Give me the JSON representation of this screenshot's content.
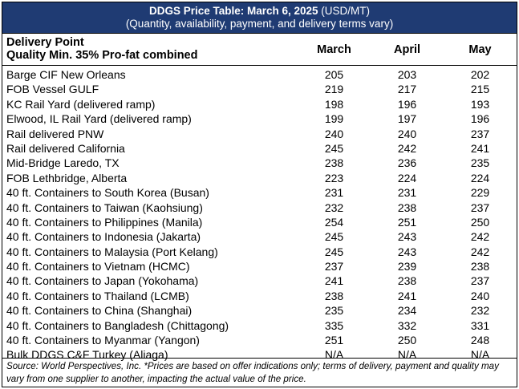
{
  "title": {
    "bold": "DDGS Price Table: March 6, 2025",
    "unit": " (USD/MT)",
    "subtitle": "(Quantity, availability, payment, and delivery terms vary)"
  },
  "header": {
    "label_line1": "Delivery Point",
    "label_line2": "Quality Min. 35% Pro-fat combined",
    "months": [
      "March",
      "April",
      "May"
    ]
  },
  "rows": [
    {
      "label": "Barge CIF New Orleans",
      "values": [
        "205",
        "203",
        "202"
      ]
    },
    {
      "label": "FOB Vessel GULF",
      "values": [
        "219",
        "217",
        "215"
      ]
    },
    {
      "label": "KC Rail Yard (delivered ramp)",
      "values": [
        "198",
        "196",
        "193"
      ]
    },
    {
      "label": "Elwood, IL Rail Yard (delivered ramp)",
      "values": [
        "199",
        "197",
        "196"
      ]
    },
    {
      "label": "Rail delivered PNW",
      "values": [
        "240",
        "240",
        "237"
      ]
    },
    {
      "label": "Rail delivered California",
      "values": [
        "245",
        "242",
        "241"
      ]
    },
    {
      "label": "Mid-Bridge Laredo, TX",
      "values": [
        "238",
        "236",
        "235"
      ]
    },
    {
      "label": "FOB Lethbridge, Alberta",
      "values": [
        "223",
        "224",
        "224"
      ]
    },
    {
      "label": "40 ft. Containers to South Korea (Busan)",
      "values": [
        "231",
        "231",
        "229"
      ]
    },
    {
      "label": "40 ft. Containers to Taiwan (Kaohsiung)",
      "values": [
        "232",
        "238",
        "237"
      ]
    },
    {
      "label": "40 ft. Containers to Philippines (Manila)",
      "values": [
        "254",
        "251",
        "250"
      ]
    },
    {
      "label": "40 ft. Containers to Indonesia (Jakarta)",
      "values": [
        "245",
        "243",
        "242"
      ]
    },
    {
      "label": "40 ft. Containers to Malaysia (Port Kelang)",
      "values": [
        "245",
        "243",
        "242"
      ]
    },
    {
      "label": "40 ft. Containers to Vietnam (HCMC)",
      "values": [
        "237",
        "239",
        "238"
      ]
    },
    {
      "label": "40 ft. Containers to Japan (Yokohama)",
      "values": [
        "241",
        "238",
        "237"
      ]
    },
    {
      "label": "40 ft. Containers to Thailand (LCMB)",
      "values": [
        "238",
        "241",
        "240"
      ]
    },
    {
      "label": "40 ft. Containers to China (Shanghai)",
      "values": [
        "235",
        "234",
        "232"
      ]
    },
    {
      "label": "40 ft. Containers to Bangladesh (Chittagong)",
      "values": [
        "335",
        "332",
        "331"
      ]
    },
    {
      "label": "40 ft. Containers to Myanmar (Yangon)",
      "values": [
        "251",
        "250",
        "248"
      ]
    },
    {
      "label": "Bulk DDGS C&F Turkey (Aliaga)",
      "values": [
        "N/A",
        "N/A",
        "N/A"
      ]
    }
  ],
  "footer": {
    "note": "Source: World Perspectives, Inc. *Prices are based on offer indications only; terms of delivery, payment and quality may vary from one supplier to another, impacting the actual value of the price."
  },
  "colors": {
    "title_background": "#1f3b73",
    "title_text": "#ffffff",
    "border": "#000000"
  }
}
